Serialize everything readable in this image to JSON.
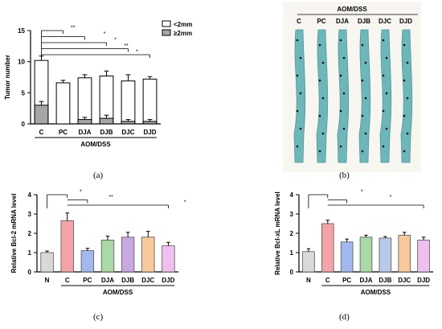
{
  "figure": {
    "panel_labels": [
      "(a)",
      "(b)",
      "(c)",
      "(d)"
    ]
  },
  "photo_panel": {
    "title": "AOM/DSS",
    "labels": [
      "C",
      "PC",
      "DJA",
      "DJB",
      "DJC",
      "DJD"
    ]
  },
  "colors": {
    "lt2mm": "#ffffff",
    "ge2mm": "#a6a6a6",
    "bars_c": [
      "#d9d9d9",
      "#f4a3a8",
      "#a3b8ee",
      "#a9d9a6",
      "#c8a8e0",
      "#f7c99b",
      "#efbfef"
    ],
    "bars_d": [
      "#d9d9d9",
      "#f4a3a8",
      "#a3b8ee",
      "#a9d9a6",
      "#b9c9ea",
      "#f7c99b",
      "#efbfef"
    ],
    "photo_background": "#f8f6f0",
    "colon_stain": "#5fb0b4"
  },
  "chart_data": [
    {
      "type": "bar",
      "stacked": true,
      "categories": [
        "C",
        "PC",
        "DJA",
        "DJB",
        "DJC",
        "DJD"
      ],
      "group_label": "AOM/DSS",
      "ylabel": "Tumor number",
      "ylim": [
        0,
        15
      ],
      "yticks": [
        0,
        5,
        10,
        15
      ],
      "series": [
        {
          "name": "≥2mm",
          "values": [
            3.0,
            0.0,
            0.7,
            0.9,
            0.4,
            0.4
          ],
          "err": [
            0.6,
            0,
            0.35,
            0.5,
            0.3,
            0.3
          ]
        },
        {
          "name": "<2mm",
          "values": [
            7.2,
            6.6,
            6.7,
            6.8,
            6.5,
            6.8
          ],
          "err": [
            0.7,
            0.4,
            0.5,
            0.8,
            1.0,
            0.4
          ]
        }
      ],
      "significance": [
        {
          "from": "C",
          "to": "PC",
          "label": "**"
        },
        {
          "from": "C",
          "to": "DJA",
          "label": "*"
        },
        {
          "from": "C",
          "to": "DJB",
          "label": "*"
        },
        {
          "from": "C",
          "to": "DJC",
          "label": "**"
        },
        {
          "from": "C",
          "to": "DJD",
          "label": "*"
        }
      ],
      "legend": "top-right"
    },
    {
      "type": "bar",
      "categories": [
        "N",
        "C",
        "PC",
        "DJA",
        "DJB",
        "DJC",
        "DJD"
      ],
      "group_label": "AOM/DSS",
      "ylabel": "Relative Bcl-2 mRNA level",
      "ylim": [
        0,
        4
      ],
      "yticks": [
        0,
        1,
        2,
        3,
        4
      ],
      "values": [
        1.0,
        2.65,
        1.1,
        1.65,
        1.8,
        1.8,
        1.35
      ],
      "err": [
        0.08,
        0.4,
        0.12,
        0.2,
        0.25,
        0.3,
        0.18
      ],
      "significance": [
        {
          "from": "N",
          "to": "C",
          "label": "*"
        },
        {
          "from": "C",
          "to": "PC",
          "label": "**"
        },
        {
          "from": "C",
          "to": "DJD",
          "label": "*"
        }
      ]
    },
    {
      "type": "bar",
      "categories": [
        "N",
        "C",
        "PC",
        "DJA",
        "DJB",
        "DJC",
        "DJD"
      ],
      "group_label": "AOM/DSS",
      "ylabel": "Relative Bcl-xL mRNA level",
      "ylim": [
        0,
        4
      ],
      "yticks": [
        0,
        1,
        2,
        3,
        4
      ],
      "values": [
        1.05,
        2.5,
        1.55,
        1.8,
        1.75,
        1.9,
        1.65
      ],
      "err": [
        0.15,
        0.18,
        0.15,
        0.1,
        0.08,
        0.15,
        0.15
      ],
      "significance": [
        {
          "from": "N",
          "to": "C",
          "label": "*"
        },
        {
          "from": "C",
          "to": "PC",
          "label": "*"
        },
        {
          "from": "C",
          "to": "DJD",
          "label": "*"
        }
      ]
    }
  ]
}
